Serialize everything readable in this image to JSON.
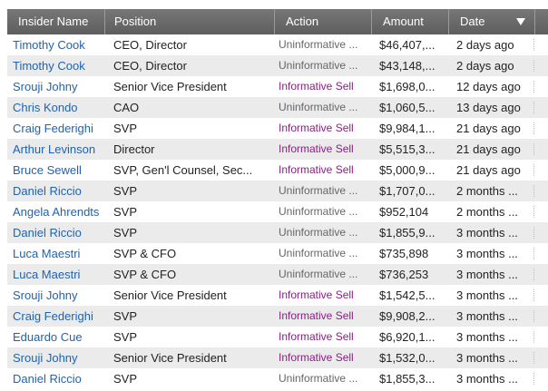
{
  "table": {
    "headers": {
      "name": "Insider Name",
      "position": "Position",
      "action": "Action",
      "amount": "Amount",
      "date": "Date"
    },
    "sort": {
      "column": "Date",
      "direction": "descending"
    },
    "colors": {
      "link": "#1f63b0",
      "informative": "#8a1f82",
      "uninformative": "#666666",
      "header_bg": "#6b6b6b",
      "alt_row": "#ebebeb"
    },
    "rows": [
      {
        "name": "Timothy Cook",
        "position": "CEO, Director",
        "action": "Uninformative ...",
        "action_type": "uninformative",
        "amount": "$46,407,...",
        "date": "2 days ago"
      },
      {
        "name": "Timothy Cook",
        "position": "CEO, Director",
        "action": "Uninformative ...",
        "action_type": "uninformative",
        "amount": "$43,148,...",
        "date": "2 days ago"
      },
      {
        "name": "Srouji Johny",
        "position": "Senior Vice President",
        "action": "Informative Sell",
        "action_type": "informative",
        "amount": "$1,698,0...",
        "date": "12 days ago"
      },
      {
        "name": "Chris Kondo",
        "position": "CAO",
        "action": "Uninformative ...",
        "action_type": "uninformative",
        "amount": "$1,060,5...",
        "date": "13 days ago"
      },
      {
        "name": "Craig Federighi",
        "position": "SVP",
        "action": "Informative Sell",
        "action_type": "informative",
        "amount": "$9,984,1...",
        "date": "21 days ago"
      },
      {
        "name": "Arthur Levinson",
        "position": "Director",
        "action": "Informative Sell",
        "action_type": "informative",
        "amount": "$5,515,3...",
        "date": "21 days ago"
      },
      {
        "name": "Bruce Sewell",
        "position": "SVP, Gen'l Counsel, Sec...",
        "action": "Informative Sell",
        "action_type": "informative",
        "amount": "$5,000,9...",
        "date": "21 days ago"
      },
      {
        "name": "Daniel Riccio",
        "position": "SVP",
        "action": "Uninformative ...",
        "action_type": "uninformative",
        "amount": "$1,707,0...",
        "date": "2 months ..."
      },
      {
        "name": "Angela Ahrendts",
        "position": "SVP",
        "action": "Uninformative ...",
        "action_type": "uninformative",
        "amount": "$952,104",
        "date": "2 months ..."
      },
      {
        "name": "Daniel Riccio",
        "position": "SVP",
        "action": "Uninformative ...",
        "action_type": "uninformative",
        "amount": "$1,855,9...",
        "date": "3 months ..."
      },
      {
        "name": "Luca Maestri",
        "position": "SVP & CFO",
        "action": "Uninformative ...",
        "action_type": "uninformative",
        "amount": "$735,898",
        "date": "3 months ..."
      },
      {
        "name": "Luca Maestri",
        "position": "SVP & CFO",
        "action": "Uninformative ...",
        "action_type": "uninformative",
        "amount": "$736,253",
        "date": "3 months ..."
      },
      {
        "name": "Srouji Johny",
        "position": "Senior Vice President",
        "action": "Informative Sell",
        "action_type": "informative",
        "amount": "$1,542,5...",
        "date": "3 months ..."
      },
      {
        "name": "Craig Federighi",
        "position": "SVP",
        "action": "Informative Sell",
        "action_type": "informative",
        "amount": "$9,908,2...",
        "date": "3 months ..."
      },
      {
        "name": "Eduardo Cue",
        "position": "SVP",
        "action": "Informative Sell",
        "action_type": "informative",
        "amount": "$6,920,1...",
        "date": "3 months ..."
      },
      {
        "name": "Srouji Johny",
        "position": "Senior Vice President",
        "action": "Informative Sell",
        "action_type": "informative",
        "amount": "$1,532,0...",
        "date": "3 months ..."
      },
      {
        "name": "Daniel Riccio",
        "position": "SVP",
        "action": "Uninformative ...",
        "action_type": "uninformative",
        "amount": "$1,855,3...",
        "date": "3 months ..."
      }
    ]
  }
}
